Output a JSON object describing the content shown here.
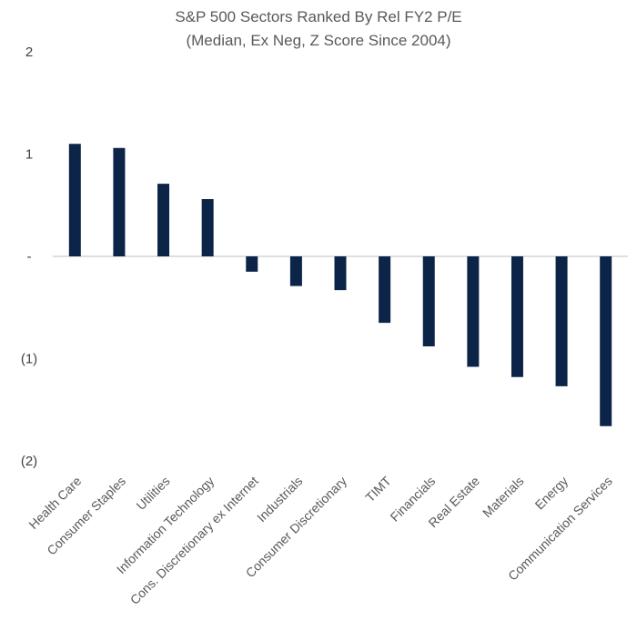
{
  "chart_data": {
    "type": "bar",
    "title": "S&P 500 Sectors Ranked By Rel FY2 P/E",
    "subtitle": "(Median, Ex Neg, Z Score Since 2004)",
    "xlabel": "",
    "ylabel": "",
    "categories": [
      "Health Care",
      "Consumer Staples",
      "Utilities",
      "Information Technology",
      "Cons. Discretionary ex Internet",
      "Industrials",
      "Consumer Discretionary",
      "TIMT",
      "Financials",
      "Real Estate",
      "Materials",
      "Energy",
      "Communication Services"
    ],
    "values": [
      1.1,
      1.06,
      0.71,
      0.56,
      -0.15,
      -0.29,
      -0.33,
      -0.65,
      -0.88,
      -1.08,
      -1.18,
      -1.27,
      -1.66
    ],
    "ylim": [
      -2,
      2
    ],
    "yticks": [
      {
        "value": 2,
        "label": "2"
      },
      {
        "value": 1,
        "label": "1"
      },
      {
        "value": 0,
        "label": "-"
      },
      {
        "value": -1,
        "label": "(1)"
      },
      {
        "value": -2,
        "label": "(2)"
      }
    ],
    "grid": false,
    "legend": "none",
    "bar_color": "#0b2447",
    "axis_color": "#bfbfbf"
  }
}
